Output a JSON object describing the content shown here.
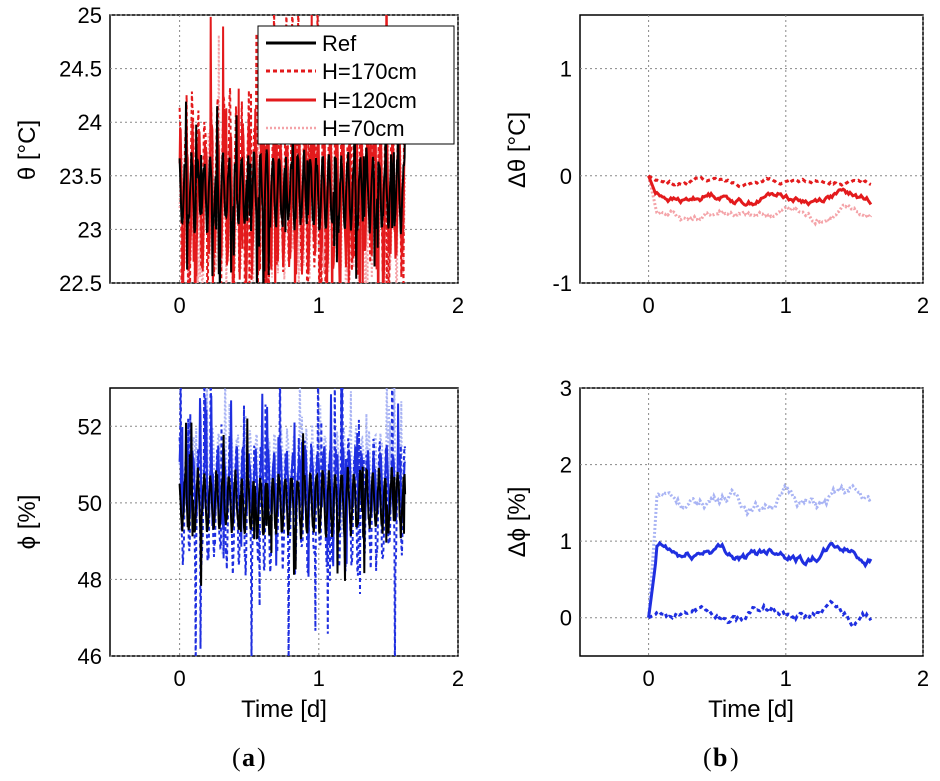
{
  "panel_labels": [
    "a",
    "b"
  ],
  "legend": {
    "entries": [
      {
        "label": "Ref",
        "color": "#000000",
        "style": "solid"
      },
      {
        "label": "H=170cm",
        "color": "#e31a1c",
        "style": "dashed"
      },
      {
        "label": "H=120cm",
        "color": "#e31a1c",
        "style": "solid"
      },
      {
        "label": "H=70cm",
        "color": "#f4a3a8",
        "style": "dotted"
      }
    ]
  },
  "chart_data": [
    {
      "type": "line",
      "panel": "a-top",
      "ylabel": "θ [°C]",
      "xlabel": "",
      "xlim": [
        -0.5,
        2
      ],
      "ylim": [
        22.5,
        25
      ],
      "xticks": [
        "0",
        "1",
        "2"
      ],
      "yticks": [
        "22.5",
        "23",
        "23.5",
        "24",
        "24.5",
        "25"
      ],
      "grid": true,
      "legend_placement": "top-right",
      "series": [
        {
          "name": "Ref",
          "color": "#000000",
          "style": "solid",
          "base": 23.35,
          "amp": 0.35
        },
        {
          "name": "H=170cm",
          "color": "#e31a1c",
          "style": "dashed",
          "base": 23.45,
          "amp": 0.8
        },
        {
          "name": "H=120cm",
          "color": "#e31a1c",
          "style": "solid",
          "base": 23.3,
          "amp": 0.7
        },
        {
          "name": "H=70cm",
          "color": "#f4a3a8",
          "style": "dotted",
          "base": 23.2,
          "amp": 0.6
        }
      ],
      "t_range": [
        0,
        1.62
      ]
    },
    {
      "type": "line",
      "panel": "b-top",
      "ylabel": "Δθ [°C]",
      "xlabel": "",
      "xlim": [
        -0.5,
        2
      ],
      "ylim": [
        -1,
        1.5
      ],
      "xticks": [
        "0",
        "1",
        "2"
      ],
      "yticks": [
        "-1",
        "0",
        "1"
      ],
      "grid": true,
      "series": [
        {
          "name": "H=170cm",
          "color": "#e31a1c",
          "style": "dashed",
          "base": -0.05,
          "amp": 0.05
        },
        {
          "name": "H=120cm",
          "color": "#e31a1c",
          "style": "solid",
          "base": -0.2,
          "amp": 0.08
        },
        {
          "name": "H=70cm",
          "color": "#f4a3a8",
          "style": "dotted",
          "base": -0.35,
          "amp": 0.1
        }
      ],
      "t_range": [
        0,
        1.62
      ]
    },
    {
      "type": "line",
      "panel": "a-bottom",
      "ylabel": "ϕ [%]",
      "xlabel": "Time [d]",
      "xlim": [
        -0.5,
        2
      ],
      "ylim": [
        46,
        53
      ],
      "xticks": [
        "0",
        "1",
        "2"
      ],
      "yticks": [
        "46",
        "48",
        "50",
        "52"
      ],
      "grid": true,
      "series": [
        {
          "name": "Ref",
          "color": "#000000",
          "style": "solid",
          "base": 50.0,
          "amp": 0.8
        },
        {
          "name": "H=170cm",
          "color": "#1f2fe0",
          "style": "dashed",
          "base": 49.9,
          "amp": 1.6
        },
        {
          "name": "H=120cm",
          "color": "#1f2fe0",
          "style": "solid",
          "base": 50.5,
          "amp": 0.9
        },
        {
          "name": "H=70cm",
          "color": "#a9b4f4",
          "style": "dotted",
          "base": 51.0,
          "amp": 0.9
        }
      ],
      "t_range": [
        0,
        1.62
      ]
    },
    {
      "type": "line",
      "panel": "b-bottom",
      "ylabel": "Δϕ [%]",
      "xlabel": "Time [d]",
      "xlim": [
        -0.5,
        2
      ],
      "ylim": [
        -0.5,
        3
      ],
      "xticks": [
        "0",
        "1",
        "2"
      ],
      "yticks": [
        "0",
        "1",
        "2",
        "3"
      ],
      "grid": true,
      "series": [
        {
          "name": "H=170cm",
          "color": "#1f2fe0",
          "style": "dashed",
          "base": 0.05,
          "amp": 0.15
        },
        {
          "name": "H=120cm",
          "color": "#1f2fe0",
          "style": "solid",
          "base": 0.85,
          "amp": 0.15
        },
        {
          "name": "H=70cm",
          "color": "#a9b4f4",
          "style": "dotted",
          "base": 1.55,
          "amp": 0.2
        }
      ],
      "t_range": [
        0,
        1.62
      ]
    }
  ]
}
